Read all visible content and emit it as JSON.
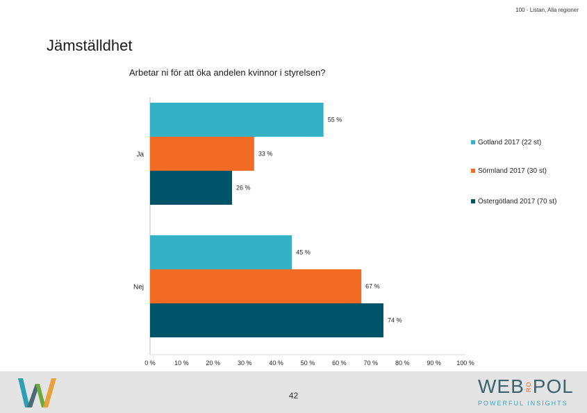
{
  "header": {
    "subtitle": "100 - Listan, Alla regioner"
  },
  "page": {
    "title": "Jämställdhet",
    "number": "42"
  },
  "brand": {
    "name_a": "WEB",
    "name_ro": "RO",
    "name_b": "POL",
    "tagline": "POWERFUL INSIGHTS"
  },
  "colors": {
    "gotland": "#35b1c5",
    "sormland": "#f26b25",
    "ostergotland": "#00546a"
  },
  "icons": {
    "logo": "w-logo-icon"
  },
  "chart_data": {
    "type": "bar",
    "orientation": "horizontal",
    "title": "Arbetar ni för att öka andelen kvinnor i styrelsen?",
    "categories": [
      "Ja",
      "Nej"
    ],
    "series": [
      {
        "name": "Gotland 2017 (22 st)",
        "values": [
          55,
          45
        ],
        "labels": [
          "55 %",
          "45 %"
        ],
        "color": "#35b1c5"
      },
      {
        "name": "Sörmland 2017 (30 st)",
        "values": [
          33,
          67
        ],
        "labels": [
          "33 %",
          "67 %"
        ],
        "color": "#f26b25"
      },
      {
        "name": "Östergötland 2017 (70 st)",
        "values": [
          26,
          74
        ],
        "labels": [
          "26 %",
          "74 %"
        ],
        "color": "#00546a"
      }
    ],
    "xlim": [
      0,
      100
    ],
    "x_ticks": [
      "0 %",
      "10 %",
      "20 %",
      "30 %",
      "40 %",
      "50 %",
      "60 %",
      "70 %",
      "80 %",
      "90 %",
      "100 %"
    ],
    "grid": false,
    "legend_position": "right"
  }
}
